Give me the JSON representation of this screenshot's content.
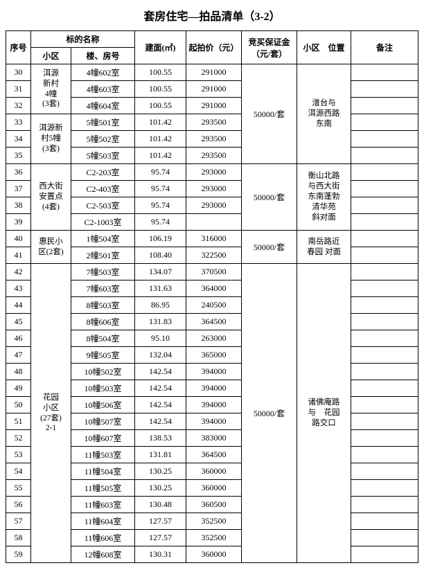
{
  "title": "套房住宅—拍品清单（3-2）",
  "headers": {
    "seq": "序号",
    "name_group": "标的名称",
    "xiaoqu": "小区",
    "room": "楼、房号",
    "area": "建面(㎡)",
    "price": "起拍价（元）",
    "deposit": "竞买保证金（元/套）",
    "location": "小区　位置",
    "remark": "备注"
  },
  "groups": [
    {
      "xiaoqu_lines": [
        "洱源",
        "新村",
        "4幢",
        "(3套)"
      ],
      "deposit": "50000/套",
      "deposit_rowspan": 6,
      "location_lines": [
        "潽台与",
        "洱源西路",
        "东南"
      ],
      "location_rowspan": 6,
      "rows": [
        {
          "seq": "30",
          "room": "4幢602室",
          "area": "100.55",
          "price": "291000"
        },
        {
          "seq": "31",
          "room": "4幢603室",
          "area": "100.55",
          "price": "291000"
        },
        {
          "seq": "32",
          "room": "4幢604室",
          "area": "100.55",
          "price": "291000"
        }
      ]
    },
    {
      "xiaoqu_lines": [
        "洱源新",
        "村5幢",
        "(3套)"
      ],
      "rows": [
        {
          "seq": "33",
          "room": "5幢501室",
          "area": "101.42",
          "price": "293500"
        },
        {
          "seq": "34",
          "room": "5幢502室",
          "area": "101.42",
          "price": "293500"
        },
        {
          "seq": "35",
          "room": "5幢503室",
          "area": "101.42",
          "price": "293500"
        }
      ]
    },
    {
      "xiaoqu_lines": [
        "西大街",
        "安置点",
        "(4套)"
      ],
      "deposit": "50000/套",
      "deposit_rowspan": 4,
      "location_lines": [
        "衡山北路",
        "与西大街",
        "东南蓬勃",
        "清华苑",
        "斜对面"
      ],
      "location_rowspan": 4,
      "rows": [
        {
          "seq": "36",
          "room": "C2-203室",
          "area": "95.74",
          "price": "293000"
        },
        {
          "seq": "37",
          "room": "C2-403室",
          "area": "95.74",
          "price": "293000"
        },
        {
          "seq": "38",
          "room": "C2-503室",
          "area": "95.74",
          "price": "293000"
        },
        {
          "seq": "39",
          "room": "C2-1003室",
          "area": "95.74",
          "price": ""
        }
      ]
    },
    {
      "xiaoqu_lines": [
        "惠民小",
        "区(2套)"
      ],
      "deposit": "50000/套",
      "deposit_rowspan": 2,
      "location_lines": [
        "南岳路近",
        "春园 对面"
      ],
      "location_rowspan": 2,
      "rows": [
        {
          "seq": "40",
          "room": "1幢504室",
          "area": "106.19",
          "price": "316000"
        },
        {
          "seq": "41",
          "room": "2幢501室",
          "area": "108.40",
          "price": "322500"
        }
      ]
    },
    {
      "xiaoqu_lines": [
        "花园",
        "小区",
        "(27套)",
        "2-1"
      ],
      "deposit": "50000/套",
      "deposit_rowspan": 18,
      "location_lines": [
        "诸佛庵路",
        "与　花园",
        "路交口"
      ],
      "location_rowspan": 18,
      "rows": [
        {
          "seq": "42",
          "room": "7幢503室",
          "area": "134.07",
          "price": "370500"
        },
        {
          "seq": "43",
          "room": "7幢603室",
          "area": "131.63",
          "price": "364000"
        },
        {
          "seq": "44",
          "room": "8幢503室",
          "area": "86.95",
          "price": "240500"
        },
        {
          "seq": "45",
          "room": "8幢606室",
          "area": "131.83",
          "price": "364500"
        },
        {
          "seq": "46",
          "room": "8幢504室",
          "area": "95.10",
          "price": "263000"
        },
        {
          "seq": "47",
          "room": "9幢505室",
          "area": "132.04",
          "price": "365000"
        },
        {
          "seq": "48",
          "room": "10幢502室",
          "area": "142.54",
          "price": "394000"
        },
        {
          "seq": "49",
          "room": "10幢503室",
          "area": "142.54",
          "price": "394000"
        },
        {
          "seq": "50",
          "room": "10幢506室",
          "area": "142.54",
          "price": "394000"
        },
        {
          "seq": "51",
          "room": "10幢507室",
          "area": "142.54",
          "price": "394000"
        },
        {
          "seq": "52",
          "room": "10幢607室",
          "area": "138.53",
          "price": "383000"
        },
        {
          "seq": "53",
          "room": "11幢503室",
          "area": "131.81",
          "price": "364500"
        },
        {
          "seq": "54",
          "room": "11幢504室",
          "area": "130.25",
          "price": "360000"
        },
        {
          "seq": "55",
          "room": "11幢505室",
          "area": "130.25",
          "price": "360000"
        },
        {
          "seq": "56",
          "room": "11幢603室",
          "area": "130.48",
          "price": "360500"
        },
        {
          "seq": "57",
          "room": "11幢604室",
          "area": "127.57",
          "price": "352500"
        },
        {
          "seq": "58",
          "room": "11幢606室",
          "area": "127.57",
          "price": "352500"
        },
        {
          "seq": "59",
          "room": "12幢608室",
          "area": "130.31",
          "price": "360000"
        }
      ]
    }
  ]
}
